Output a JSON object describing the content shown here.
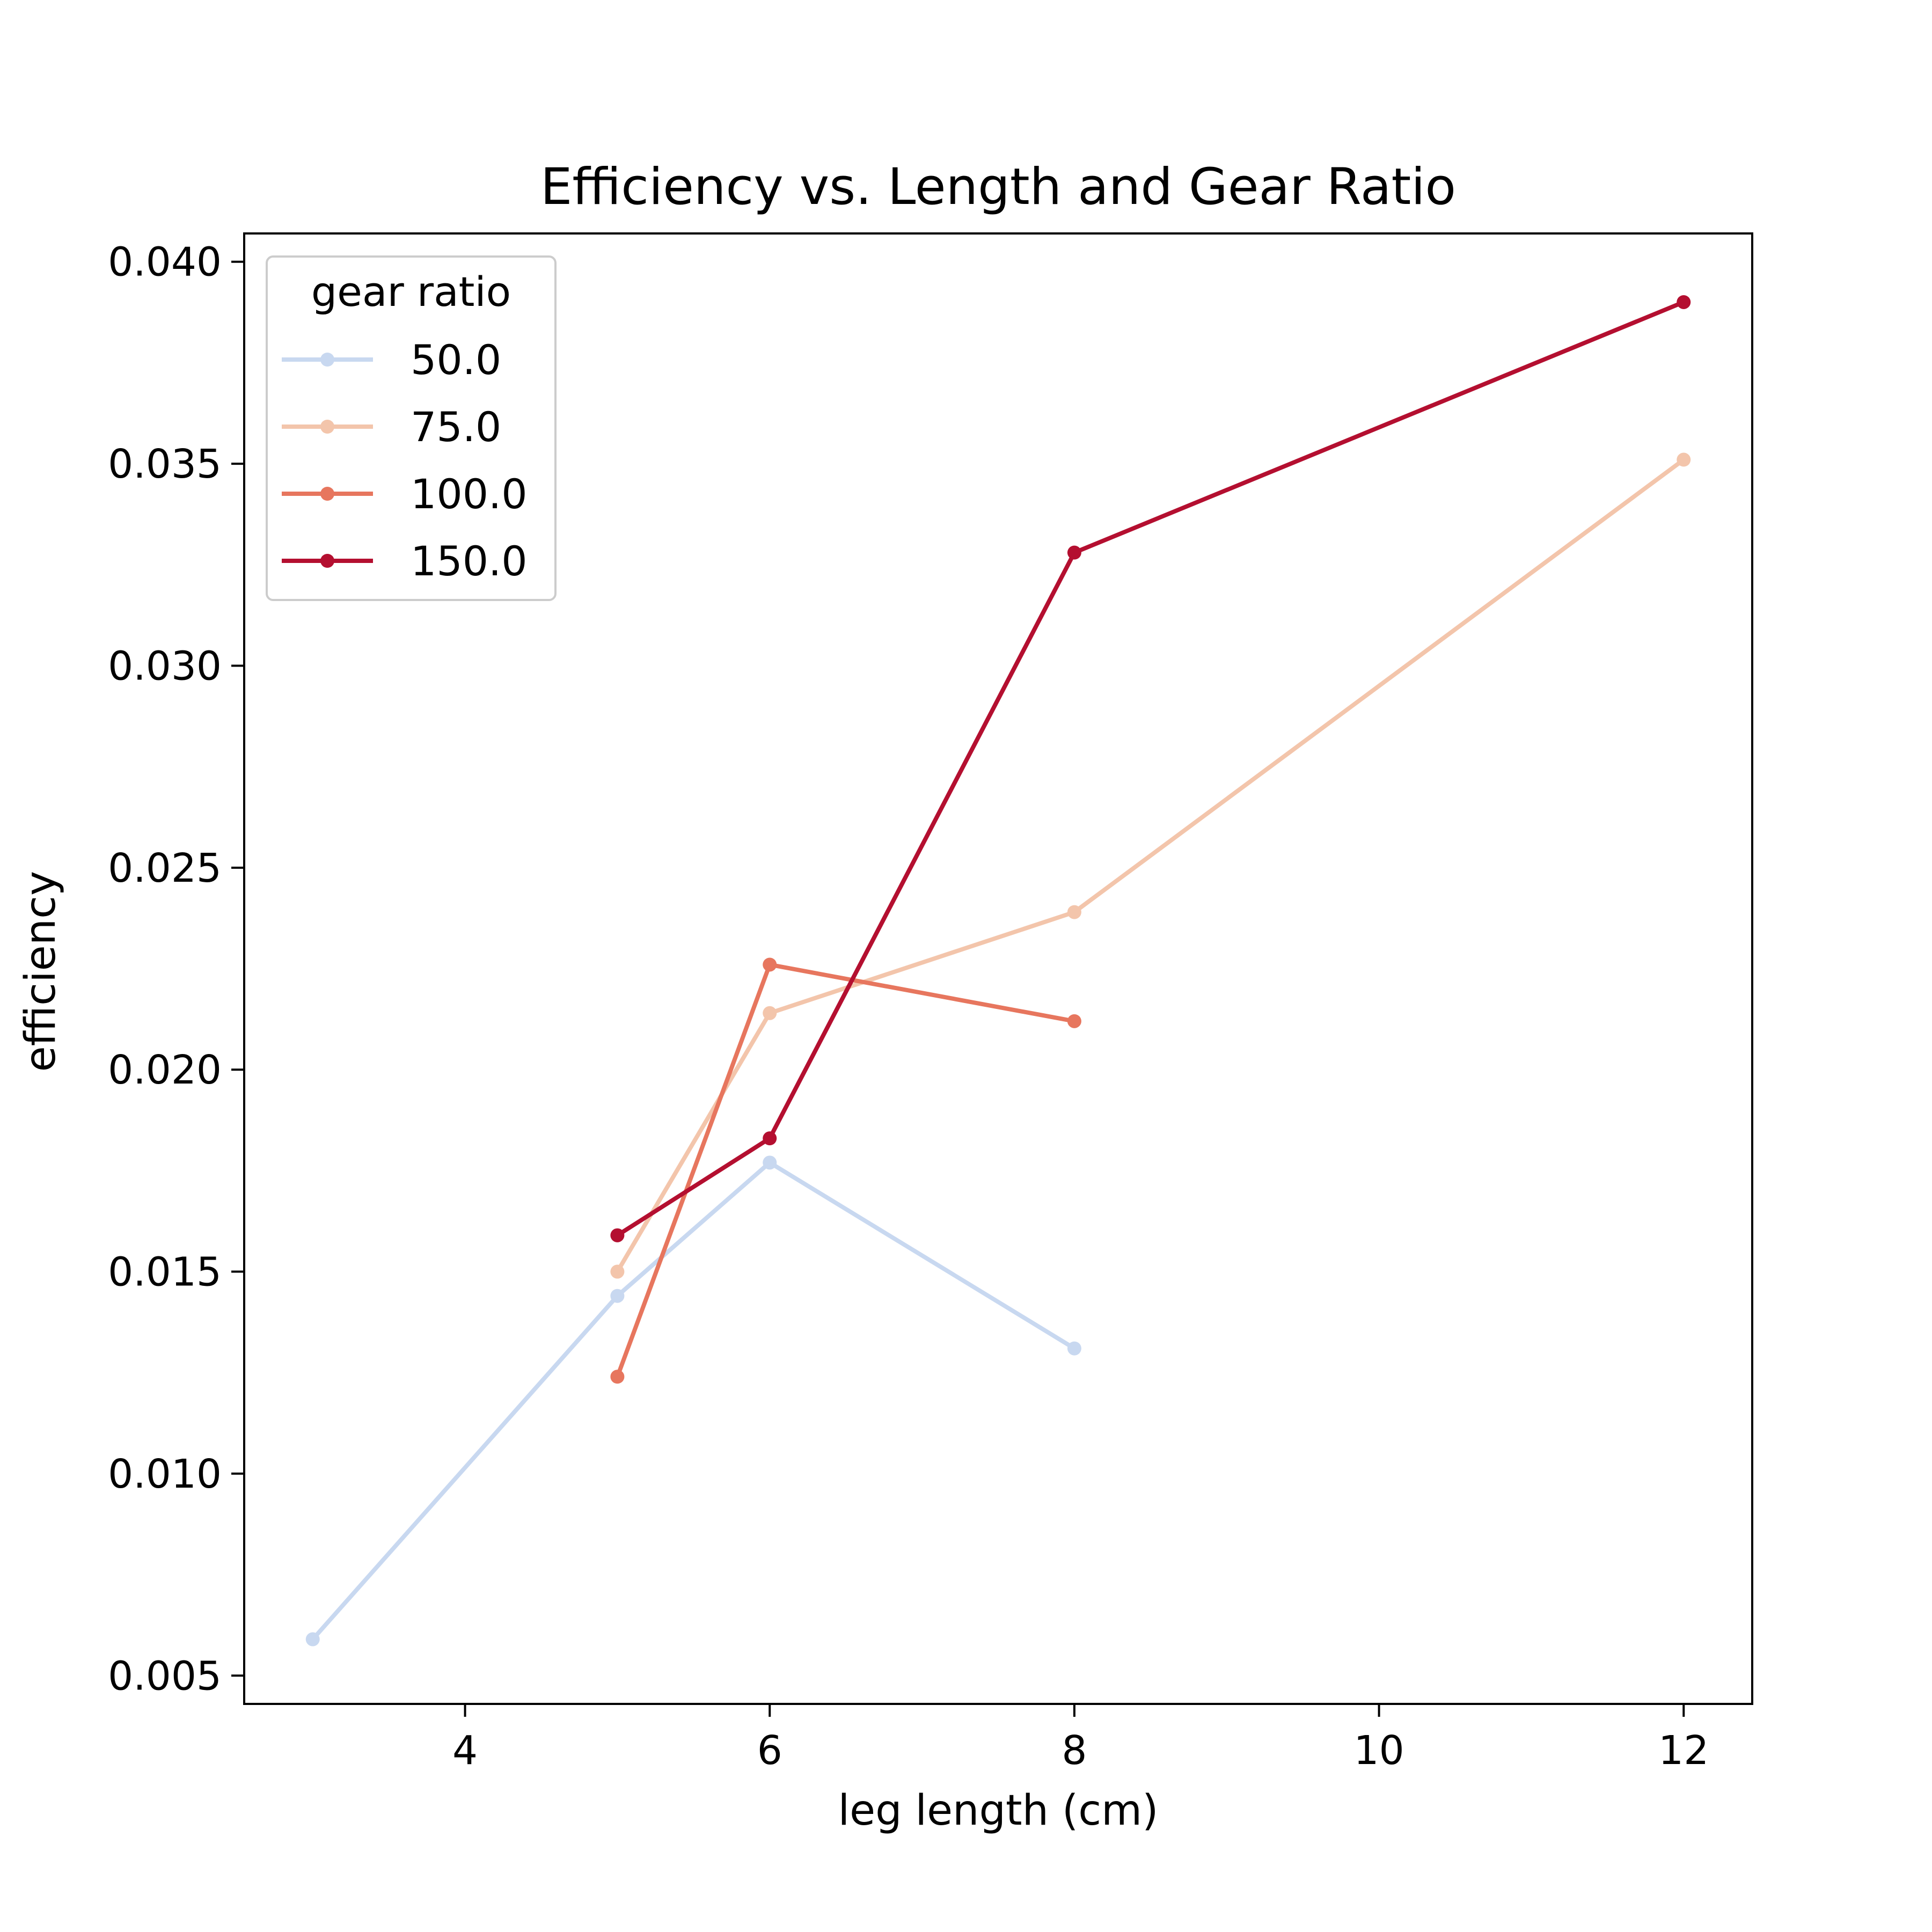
{
  "chart_data": {
    "type": "line",
    "title": "Efficiency vs. Length and Gear Ratio",
    "xlabel": "leg length (cm)",
    "ylabel": "efficiency",
    "xlim": [
      2.55,
      12.45
    ],
    "ylim": [
      0.0043,
      0.0407
    ],
    "xticks": [
      4,
      6,
      8,
      10,
      12
    ],
    "yticks": [
      0.005,
      0.01,
      0.015,
      0.02,
      0.025,
      0.03,
      0.035,
      0.04
    ],
    "xtick_labels": [
      "4",
      "6",
      "8",
      "10",
      "12"
    ],
    "ytick_labels": [
      "0.005",
      "0.010",
      "0.015",
      "0.020",
      "0.025",
      "0.030",
      "0.035",
      "0.040"
    ],
    "grid": false,
    "legend": {
      "title": "gear ratio",
      "placement": "top-left"
    },
    "series": [
      {
        "name": "50.0",
        "color": "#c8d8f0",
        "x": [
          3,
          5,
          6,
          8
        ],
        "y": [
          0.0059,
          0.0144,
          0.0177,
          0.0131
        ]
      },
      {
        "name": "75.0",
        "color": "#f3c5ab",
        "x": [
          5,
          6,
          8,
          12
        ],
        "y": [
          0.015,
          0.0214,
          0.0239,
          0.0351
        ]
      },
      {
        "name": "100.0",
        "color": "#e7765e",
        "x": [
          5,
          6,
          8
        ],
        "y": [
          0.0124,
          0.0226,
          0.0212
        ]
      },
      {
        "name": "150.0",
        "color": "#b40f30",
        "x": [
          5,
          6,
          8,
          12
        ],
        "y": [
          0.0159,
          0.0183,
          0.0328,
          0.039
        ]
      }
    ]
  }
}
